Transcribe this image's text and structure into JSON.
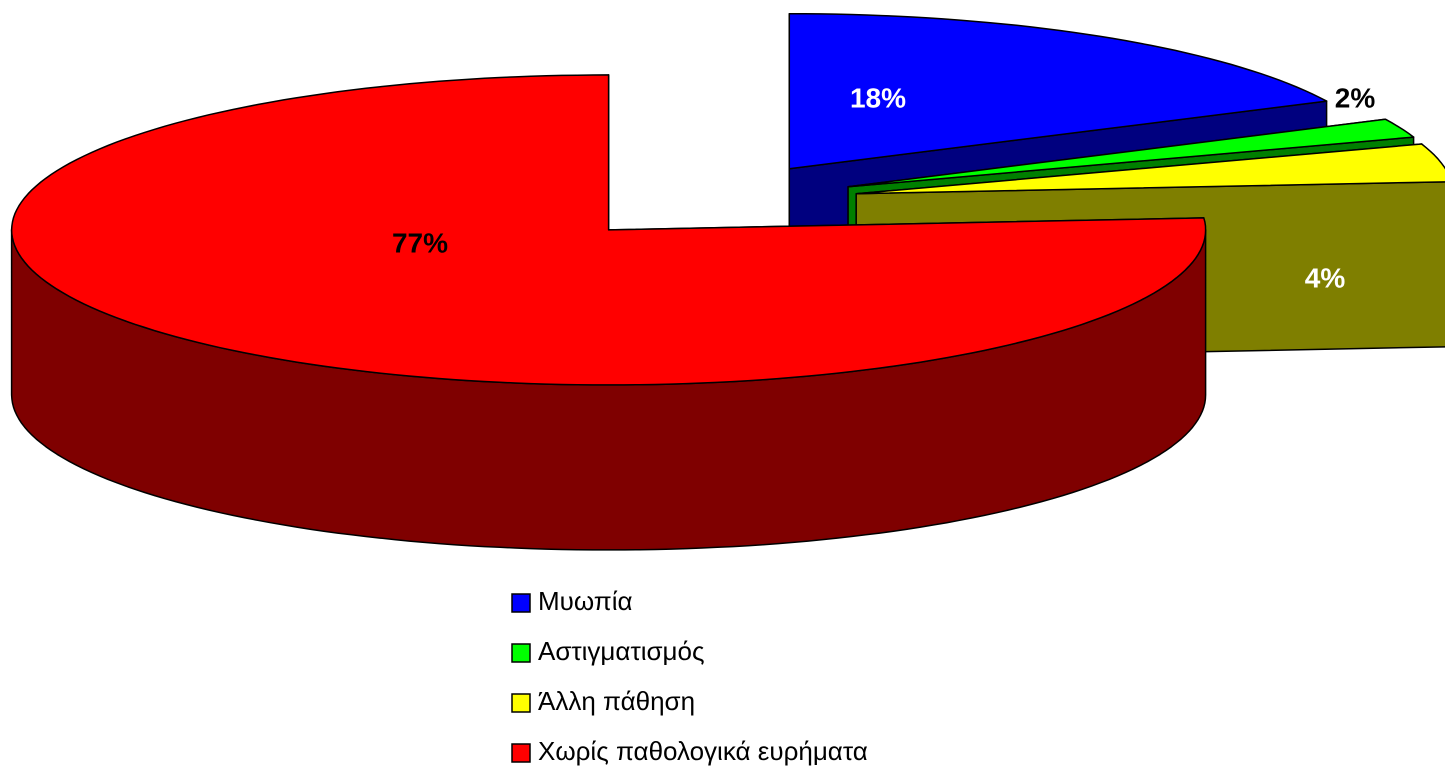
{
  "chart_data": {
    "type": "pie3d",
    "categories": [
      "Μυωπία",
      "Αστιγματισμός",
      "Άλλη πάθηση",
      "Χωρίς παθολογικά ευρήματα"
    ],
    "values": [
      18,
      2,
      4,
      77
    ],
    "value_labels": [
      "18%",
      "2%",
      "4%",
      "77%"
    ],
    "colors": [
      "#0000ff",
      "#00ff00",
      "#ffff00",
      "#ff0000"
    ],
    "legend": "bottom"
  }
}
